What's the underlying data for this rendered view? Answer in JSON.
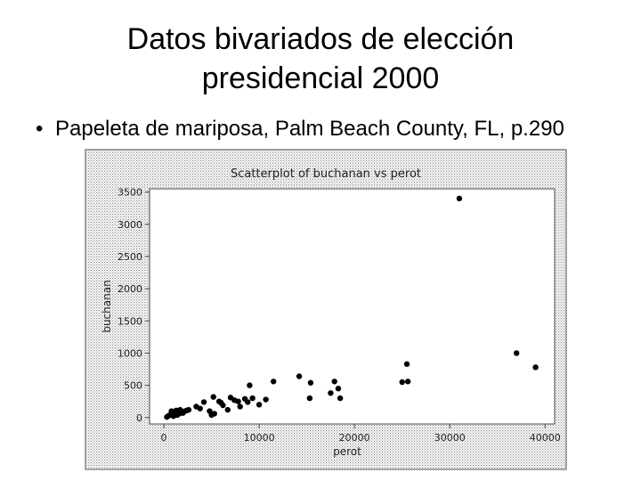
{
  "slide": {
    "title_line1": "Datos bivariados de elección",
    "title_line2": "presidencial 2000",
    "bullet": "Papeleta de mariposa, Palm Beach County, FL, p.290"
  },
  "chart_data": {
    "type": "scatter",
    "title": "Scatterplot of buchanan vs perot",
    "xlabel": "perot",
    "ylabel": "buchanan",
    "xlim": [
      -1500,
      41000
    ],
    "ylim": [
      -100,
      3550
    ],
    "xticks": [
      0,
      10000,
      20000,
      30000,
      40000
    ],
    "xtick_labels": [
      "0",
      "10000",
      "20000",
      "30000",
      "40000"
    ],
    "yticks": [
      0,
      500,
      1000,
      1500,
      2000,
      2500,
      3000,
      3500
    ],
    "ytick_labels": [
      "0",
      "500",
      "1000",
      "1500",
      "2000",
      "2500",
      "3000",
      "3500"
    ],
    "grid": false,
    "point_color": "#000000",
    "points": [
      {
        "x": 316,
        "y": 9
      },
      {
        "x": 500,
        "y": 29
      },
      {
        "x": 700,
        "y": 46
      },
      {
        "x": 900,
        "y": 60
      },
      {
        "x": 800,
        "y": 100
      },
      {
        "x": 1000,
        "y": 22
      },
      {
        "x": 1100,
        "y": 78
      },
      {
        "x": 1200,
        "y": 50
      },
      {
        "x": 1300,
        "y": 110
      },
      {
        "x": 1400,
        "y": 40
      },
      {
        "x": 1500,
        "y": 90
      },
      {
        "x": 1600,
        "y": 60
      },
      {
        "x": 1700,
        "y": 120
      },
      {
        "x": 1800,
        "y": 80
      },
      {
        "x": 2000,
        "y": 70
      },
      {
        "x": 2200,
        "y": 100
      },
      {
        "x": 2400,
        "y": 110
      },
      {
        "x": 2600,
        "y": 120
      },
      {
        "x": 3400,
        "y": 170
      },
      {
        "x": 3800,
        "y": 140
      },
      {
        "x": 4200,
        "y": 240
      },
      {
        "x": 4800,
        "y": 100
      },
      {
        "x": 5000,
        "y": 40
      },
      {
        "x": 5300,
        "y": 60
      },
      {
        "x": 5200,
        "y": 320
      },
      {
        "x": 5800,
        "y": 250
      },
      {
        "x": 6000,
        "y": 230
      },
      {
        "x": 6200,
        "y": 190
      },
      {
        "x": 6700,
        "y": 120
      },
      {
        "x": 7000,
        "y": 310
      },
      {
        "x": 7400,
        "y": 270
      },
      {
        "x": 7800,
        "y": 250
      },
      {
        "x": 8000,
        "y": 170
      },
      {
        "x": 8500,
        "y": 290
      },
      {
        "x": 8800,
        "y": 240
      },
      {
        "x": 9000,
        "y": 500
      },
      {
        "x": 9300,
        "y": 300
      },
      {
        "x": 10000,
        "y": 200
      },
      {
        "x": 10700,
        "y": 280
      },
      {
        "x": 11500,
        "y": 560
      },
      {
        "x": 14200,
        "y": 640
      },
      {
        "x": 15400,
        "y": 540
      },
      {
        "x": 15300,
        "y": 300
      },
      {
        "x": 17500,
        "y": 380
      },
      {
        "x": 17900,
        "y": 560
      },
      {
        "x": 18300,
        "y": 450
      },
      {
        "x": 18500,
        "y": 300
      },
      {
        "x": 25000,
        "y": 550
      },
      {
        "x": 25500,
        "y": 830
      },
      {
        "x": 25600,
        "y": 560
      },
      {
        "x": 31000,
        "y": 3400
      },
      {
        "x": 37000,
        "y": 1000
      },
      {
        "x": 39000,
        "y": 780
      }
    ]
  }
}
